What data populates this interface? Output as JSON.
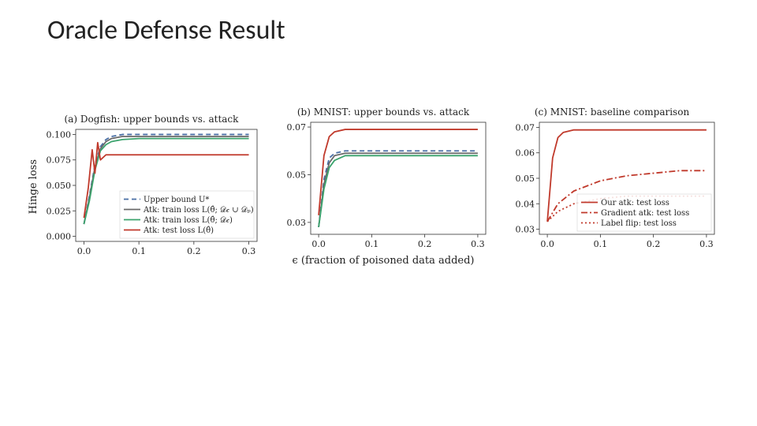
{
  "title": "Oracle Defense Result",
  "ylabel": "Hinge loss",
  "xlabel": "ϵ (fraction of poisoned data added)",
  "colors": {
    "upper_bound": "#4a6fa5",
    "train_union": "#6a6a6a",
    "train_clean": "#3ba36d",
    "test_loss": "#c0392b",
    "our_atk": "#c0392b",
    "grad_atk": "#c0392b",
    "label_flip": "#c0392b",
    "axis": "#333333",
    "grid": "#e6e6e6",
    "bg": "#ffffff"
  },
  "line_width": 1.8,
  "legend_font_size": 10,
  "axis_font_size": 11,
  "title_font_size": 12,
  "chart_a": {
    "title": "(a) Dogfish: upper bounds vs. attack",
    "xlim": [
      -0.015,
      0.315
    ],
    "xticks": [
      0.0,
      0.1,
      0.2,
      0.3
    ],
    "ylim": [
      -0.005,
      0.105
    ],
    "yticks": [
      0.0,
      0.025,
      0.05,
      0.075,
      0.1
    ],
    "ytick_labels": [
      "0.000",
      "0.025",
      "0.050",
      "0.075",
      "0.100"
    ],
    "legend": {
      "pos": "lower-right",
      "entries": [
        {
          "key": "upper_bound",
          "label": "Upper bound U*",
          "dash": "6,4"
        },
        {
          "key": "train_union",
          "label": "Atk: train loss L(θ̂; 𝒟𝒸 ∪ 𝒟ₚ)",
          "dash": ""
        },
        {
          "key": "train_clean",
          "label": "Atk: train loss L(θ̂; 𝒟𝒸)",
          "dash": ""
        },
        {
          "key": "test_loss",
          "label": "Atk: test loss L(θ̂)",
          "dash": ""
        }
      ]
    },
    "series": [
      {
        "key": "upper_bound",
        "dash": "6,4",
        "data": [
          [
            0,
            0.012
          ],
          [
            0.01,
            0.04
          ],
          [
            0.02,
            0.07
          ],
          [
            0.03,
            0.088
          ],
          [
            0.04,
            0.095
          ],
          [
            0.05,
            0.098
          ],
          [
            0.07,
            0.1
          ],
          [
            0.1,
            0.1
          ],
          [
            0.2,
            0.1
          ],
          [
            0.3,
            0.1
          ]
        ]
      },
      {
        "key": "train_union",
        "dash": "",
        "data": [
          [
            0,
            0.012
          ],
          [
            0.01,
            0.038
          ],
          [
            0.02,
            0.068
          ],
          [
            0.03,
            0.086
          ],
          [
            0.04,
            0.093
          ],
          [
            0.05,
            0.096
          ],
          [
            0.07,
            0.098
          ],
          [
            0.1,
            0.098
          ],
          [
            0.2,
            0.098
          ],
          [
            0.3,
            0.098
          ]
        ]
      },
      {
        "key": "train_clean",
        "dash": "",
        "data": [
          [
            0,
            0.012
          ],
          [
            0.01,
            0.035
          ],
          [
            0.02,
            0.065
          ],
          [
            0.03,
            0.084
          ],
          [
            0.04,
            0.09
          ],
          [
            0.05,
            0.093
          ],
          [
            0.07,
            0.095
          ],
          [
            0.1,
            0.096
          ],
          [
            0.2,
            0.096
          ],
          [
            0.3,
            0.096
          ]
        ]
      },
      {
        "key": "test_loss",
        "dash": "",
        "data": [
          [
            0,
            0.018
          ],
          [
            0.008,
            0.048
          ],
          [
            0.015,
            0.085
          ],
          [
            0.02,
            0.062
          ],
          [
            0.025,
            0.092
          ],
          [
            0.03,
            0.075
          ],
          [
            0.04,
            0.08
          ],
          [
            0.05,
            0.08
          ],
          [
            0.07,
            0.08
          ],
          [
            0.1,
            0.08
          ],
          [
            0.2,
            0.08
          ],
          [
            0.3,
            0.08
          ]
        ]
      }
    ]
  },
  "chart_b": {
    "title": "(b) MNIST: upper bounds vs. attack",
    "xlim": [
      -0.015,
      0.315
    ],
    "xticks": [
      0.0,
      0.1,
      0.2,
      0.3
    ],
    "ylim": [
      0.025,
      0.072
    ],
    "yticks": [
      0.03,
      0.05,
      0.07
    ],
    "ytick_labels": [
      "0.03",
      "0.05",
      "0.07"
    ],
    "series": [
      {
        "key": "upper_bound",
        "dash": "6,4",
        "data": [
          [
            0,
            0.028
          ],
          [
            0.01,
            0.048
          ],
          [
            0.02,
            0.057
          ],
          [
            0.03,
            0.059
          ],
          [
            0.05,
            0.06
          ],
          [
            0.1,
            0.06
          ],
          [
            0.2,
            0.06
          ],
          [
            0.3,
            0.06
          ]
        ]
      },
      {
        "key": "train_union",
        "dash": "",
        "data": [
          [
            0,
            0.028
          ],
          [
            0.01,
            0.046
          ],
          [
            0.02,
            0.055
          ],
          [
            0.03,
            0.058
          ],
          [
            0.05,
            0.059
          ],
          [
            0.1,
            0.059
          ],
          [
            0.2,
            0.059
          ],
          [
            0.3,
            0.059
          ]
        ]
      },
      {
        "key": "train_clean",
        "dash": "",
        "data": [
          [
            0,
            0.028
          ],
          [
            0.01,
            0.044
          ],
          [
            0.02,
            0.053
          ],
          [
            0.03,
            0.056
          ],
          [
            0.05,
            0.058
          ],
          [
            0.1,
            0.058
          ],
          [
            0.2,
            0.058
          ],
          [
            0.3,
            0.058
          ]
        ]
      },
      {
        "key": "test_loss",
        "dash": "",
        "data": [
          [
            0,
            0.033
          ],
          [
            0.01,
            0.058
          ],
          [
            0.02,
            0.066
          ],
          [
            0.03,
            0.068
          ],
          [
            0.05,
            0.069
          ],
          [
            0.1,
            0.069
          ],
          [
            0.2,
            0.069
          ],
          [
            0.3,
            0.069
          ]
        ]
      }
    ]
  },
  "chart_c": {
    "title": "(c) MNIST: baseline comparison",
    "xlim": [
      -0.015,
      0.315
    ],
    "xticks": [
      0.0,
      0.1,
      0.2,
      0.3
    ],
    "ylim": [
      0.028,
      0.072
    ],
    "yticks": [
      0.03,
      0.04,
      0.05,
      0.06,
      0.07
    ],
    "ytick_labels": [
      "0.03",
      "0.04",
      "0.05",
      "0.06",
      "0.07"
    ],
    "legend": {
      "pos": "lower-right",
      "entries": [
        {
          "key": "our_atk",
          "label": "Our atk: test loss",
          "dash": ""
        },
        {
          "key": "grad_atk",
          "label": "Gradient atk: test loss",
          "dash": "8,3,2,3"
        },
        {
          "key": "label_flip",
          "label": "Label flip: test loss",
          "dash": "2,3"
        }
      ]
    },
    "series": [
      {
        "key": "our_atk",
        "dash": "",
        "data": [
          [
            0,
            0.033
          ],
          [
            0.01,
            0.058
          ],
          [
            0.02,
            0.066
          ],
          [
            0.03,
            0.068
          ],
          [
            0.05,
            0.069
          ],
          [
            0.1,
            0.069
          ],
          [
            0.2,
            0.069
          ],
          [
            0.3,
            0.069
          ]
        ]
      },
      {
        "key": "grad_atk",
        "dash": "8,3,2,3",
        "data": [
          [
            0,
            0.033
          ],
          [
            0.02,
            0.04
          ],
          [
            0.05,
            0.045
          ],
          [
            0.1,
            0.049
          ],
          [
            0.15,
            0.051
          ],
          [
            0.2,
            0.052
          ],
          [
            0.25,
            0.053
          ],
          [
            0.3,
            0.053
          ]
        ]
      },
      {
        "key": "label_flip",
        "dash": "2,3",
        "data": [
          [
            0,
            0.033
          ],
          [
            0.02,
            0.037
          ],
          [
            0.05,
            0.04
          ],
          [
            0.1,
            0.042
          ],
          [
            0.15,
            0.043
          ],
          [
            0.2,
            0.043
          ],
          [
            0.25,
            0.043
          ],
          [
            0.3,
            0.043
          ]
        ]
      }
    ]
  }
}
